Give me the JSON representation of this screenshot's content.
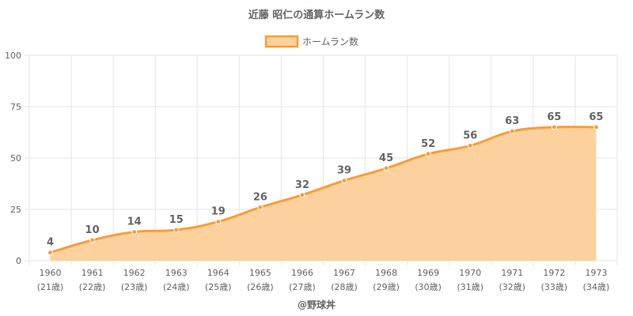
{
  "chart_data": {
    "type": "area",
    "title": "近藤 昭仁の通算ホームラン数",
    "legend": {
      "label": "ホームラン数",
      "position": "top"
    },
    "categories": [
      "1960",
      "1961",
      "1962",
      "1963",
      "1964",
      "1965",
      "1966",
      "1967",
      "1968",
      "1969",
      "1970",
      "1971",
      "1972",
      "1973"
    ],
    "sublabels": [
      "(21歳)",
      "(22歳)",
      "(23歳)",
      "(24歳)",
      "(25歳)",
      "(26歳)",
      "(27歳)",
      "(28歳)",
      "(29歳)",
      "(30歳)",
      "(31歳)",
      "(32歳)",
      "(33歳)",
      "(34歳)"
    ],
    "series": [
      {
        "name": "ホームラン数",
        "values": [
          4,
          10,
          14,
          15,
          19,
          26,
          32,
          39,
          45,
          52,
          56,
          63,
          65,
          65
        ]
      }
    ],
    "ylim": [
      0,
      100
    ],
    "yticks": [
      0,
      25,
      50,
      75,
      100
    ],
    "grid": true,
    "colors": {
      "line": "#f99d3b",
      "fill": "#fdd19d",
      "grid": "#e6e6e6",
      "text": "#666666"
    }
  },
  "footer": {
    "credit": "@野球丼"
  }
}
